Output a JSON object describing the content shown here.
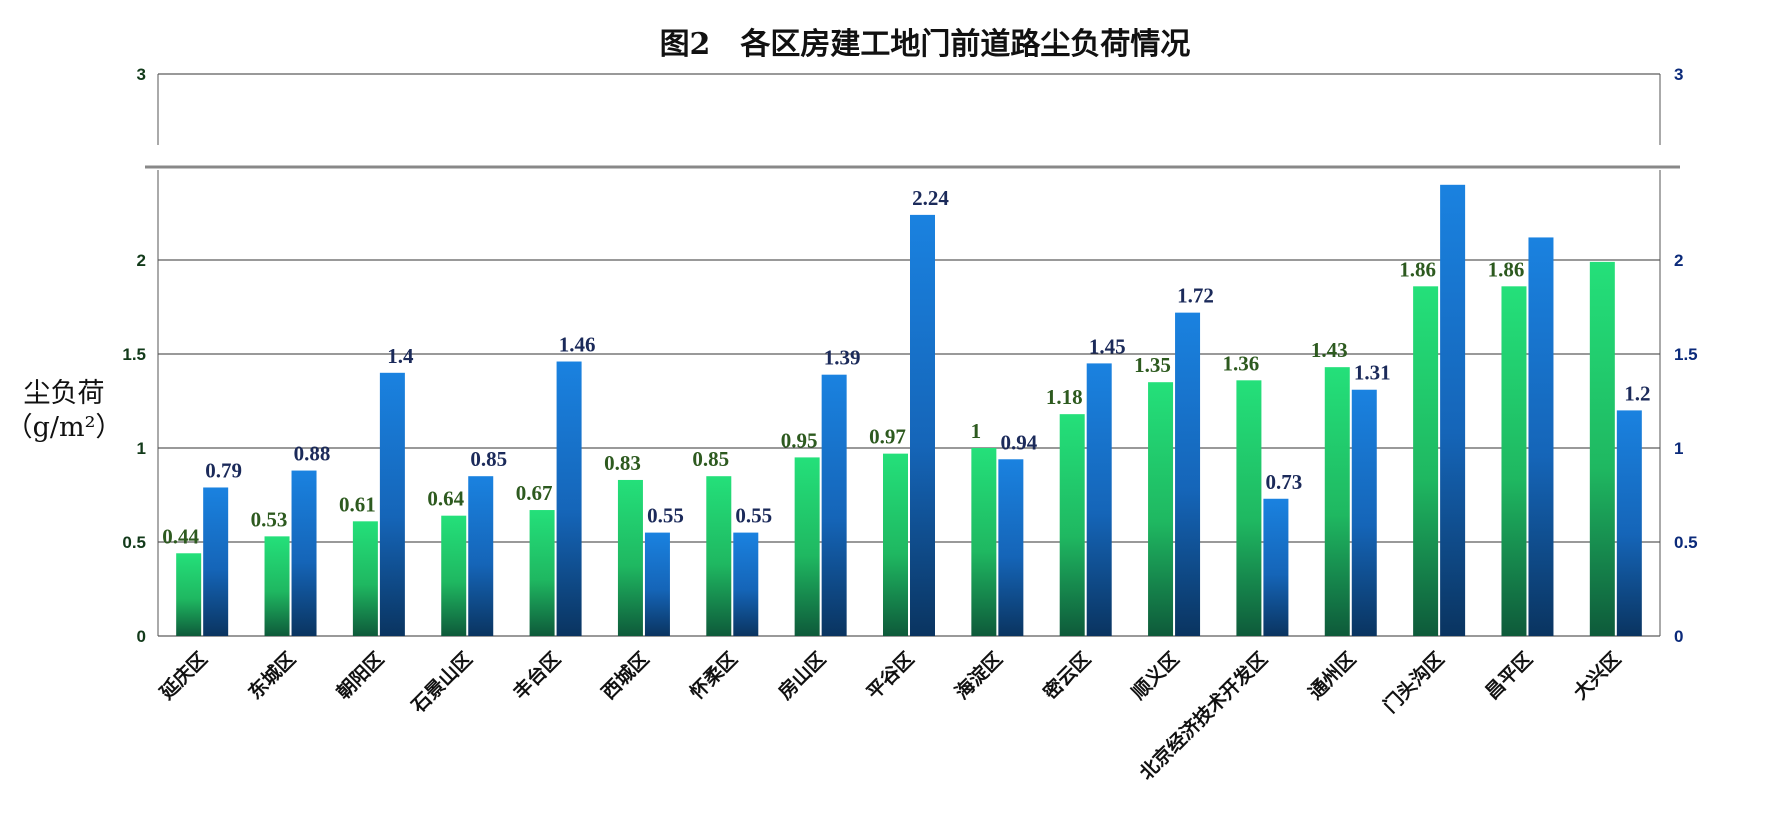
{
  "chart_data": {
    "type": "bar",
    "title": "图2　各区房建工地门前道路尘负荷情况",
    "ylabel": "尘负荷",
    "ylabel_unit": "（g/m²）",
    "ylim": [
      0,
      3
    ],
    "axis_break": [
      2.4,
      2.9
    ],
    "yticks": [
      "0",
      "0.5",
      "1",
      "1.5",
      "2",
      "3"
    ],
    "grid": true,
    "categories": [
      "延庆区",
      "东城区",
      "朝阳区",
      "石景山区",
      "丰台区",
      "西城区",
      "怀柔区",
      "房山区",
      "平谷区",
      "海淀区",
      "密云区",
      "顺义区",
      "北京经济技术开发区",
      "通州区",
      "门头沟区",
      "昌平区",
      "大兴区"
    ],
    "series": [
      {
        "color": "#2bbf5f",
        "label_color": "#2d5a1f",
        "values": [
          0.44,
          0.53,
          0.61,
          0.64,
          0.67,
          0.83,
          0.85,
          0.95,
          0.97,
          1,
          1.18,
          1.35,
          1.36,
          1.43,
          1.86,
          1.86,
          1.99
        ],
        "labels": [
          "0.44",
          "0.53",
          "0.61",
          "0.64",
          "0.67",
          "0.83",
          "0.85",
          "0.95",
          "0.97",
          "1",
          "1.18",
          "1.35",
          "1.36",
          "1.43",
          "1.86",
          "1.86",
          ""
        ]
      },
      {
        "color": "#1a7dd6",
        "label_color": "#1b2a5a",
        "values": [
          0.79,
          0.88,
          1.4,
          0.85,
          1.46,
          0.55,
          0.55,
          1.39,
          2.24,
          0.94,
          1.45,
          1.72,
          0.73,
          1.31,
          2.44,
          2.12,
          1.2
        ],
        "labels": [
          "0.79",
          "0.88",
          "1.4",
          "0.85",
          "1.46",
          "0.55",
          "0.55",
          "1.39",
          "2.24",
          "0.94",
          "1.45",
          "1.72",
          "0.73",
          "1.31",
          "",
          "",
          "1.2"
        ]
      }
    ]
  }
}
